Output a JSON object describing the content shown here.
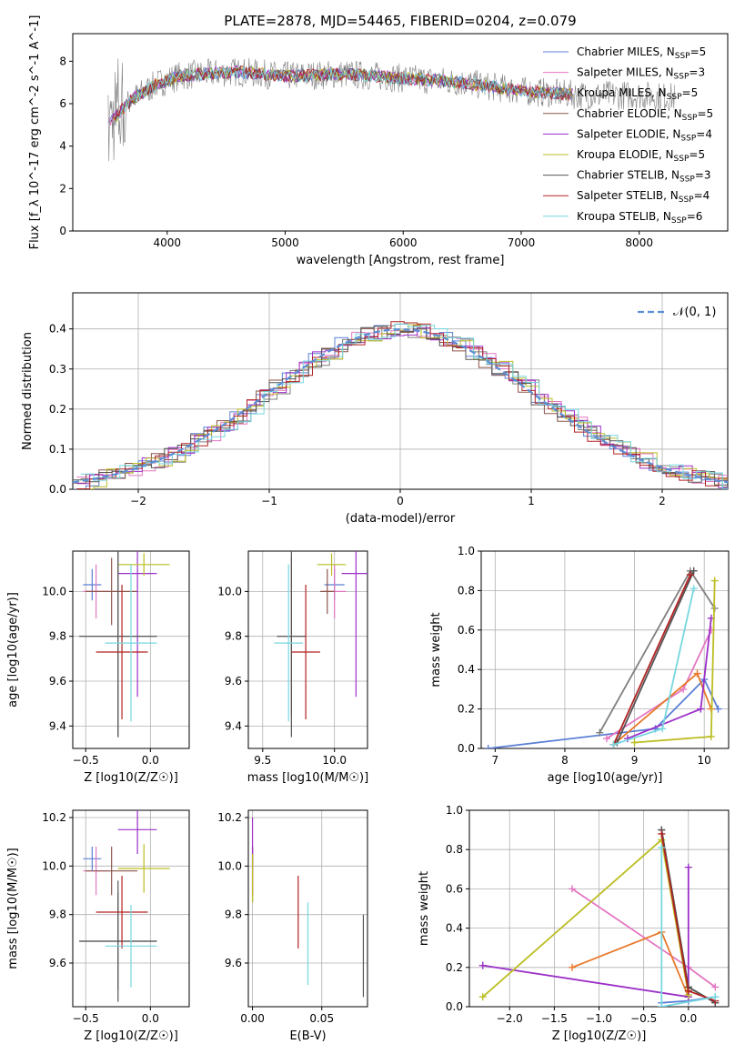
{
  "colors": {
    "series": [
      "#5b7fd6",
      "#e377c2",
      "#7f7f7f",
      "#8c564b",
      "#9b30c8",
      "#bcbd22",
      "#555555",
      "#b22222",
      "#76d7e0"
    ],
    "normal": "#5b8fd6",
    "orange": "#e8782a"
  },
  "legend": [
    "Chabrier MILES, N_SSP=5",
    "Salpeter MILES, N_SSP=3",
    "Kroupa MILES, N_SSP=5",
    "Chabrier ELODIE, N_SSP=5",
    "Salpeter ELODIE, N_SSP=4",
    "Kroupa ELODIE, N_SSP=5",
    "Chabrier STELIB, N_SSP=3",
    "Salpeter STELIB, N_SSP=4",
    "Kroupa STELIB, N_SSP=6"
  ],
  "chart_data": [
    {
      "id": "spectrum",
      "type": "line",
      "title": "PLATE=2878, MJD=54465, FIBERID=0204, z=0.079",
      "xlabel": "wavelength [Angstrom, rest frame]",
      "ylabel": "Flux [f_λ 10^-17 erg cm^-2 s^-1 A^-1]",
      "xlim": [
        3200,
        8750
      ],
      "ylim": [
        0,
        9.3
      ],
      "xticks": [
        "4000",
        "5000",
        "6000",
        "7000",
        "8000"
      ],
      "yticks": [
        "0",
        "2",
        "4",
        "6",
        "8"
      ],
      "continuum": {
        "x": [
          3500,
          3700,
          3900,
          4100,
          4300,
          4600,
          5000,
          5500,
          6000,
          6500,
          7000,
          7500,
          8000,
          8300
        ],
        "y": [
          5.0,
          6.2,
          6.9,
          7.3,
          7.4,
          7.5,
          7.3,
          7.4,
          7.2,
          7.0,
          6.6,
          6.4,
          6.4,
          6.3
        ]
      }
    },
    {
      "id": "residuals",
      "type": "line",
      "xlabel": "(data-model)/error",
      "ylabel": "Normed distribution",
      "xlim": [
        -2.5,
        2.5
      ],
      "ylim": [
        0,
        0.49
      ],
      "xticks": [
        "−2",
        "−1",
        "0",
        "1",
        "2"
      ],
      "yticks": [
        "0.0",
        "0.1",
        "0.2",
        "0.3",
        "0.4"
      ],
      "legend": "N(0,1)",
      "grid": true
    },
    {
      "id": "age-Z",
      "type": "scatter",
      "xlabel": "Z [log10(Z/Z☉)]",
      "ylabel": "age [log10(age/yr)]",
      "xlim": [
        -0.6,
        0.3
      ],
      "ylim": [
        9.3,
        10.18
      ],
      "xticks": [
        "−0.5",
        "0.0"
      ],
      "yticks": [
        "9.4",
        "9.6",
        "9.8",
        "10.0"
      ],
      "points": [
        {
          "x": -0.45,
          "y": 10.03,
          "xe": 0.07,
          "ye": 0.07
        },
        {
          "x": -0.42,
          "y": 10.0,
          "xe": 0.1,
          "ye": 0.12
        },
        {
          "x": -0.25,
          "y": 9.8,
          "xe": 0.3,
          "ye": 0.45
        },
        {
          "x": -0.3,
          "y": 10.0,
          "xe": 0.2,
          "ye": 0.15
        },
        {
          "x": -0.1,
          "y": 10.08,
          "xe": 0.15,
          "ye": 0.55
        },
        {
          "x": -0.05,
          "y": 10.12,
          "xe": 0.2,
          "ye": 0.05
        },
        {
          "x": -0.25,
          "y": 9.8,
          "xe": 0.3,
          "ye": 0.45
        },
        {
          "x": -0.22,
          "y": 9.73,
          "xe": 0.2,
          "ye": 0.3
        },
        {
          "x": -0.15,
          "y": 9.77,
          "xe": 0.2,
          "ye": 0.35
        }
      ]
    },
    {
      "id": "age-mass",
      "type": "scatter",
      "xlabel": "mass [log10(M/M☉)]",
      "ylabel": "",
      "xlim": [
        9.4,
        10.23
      ],
      "ylim": [
        9.3,
        10.18
      ],
      "xticks": [
        "9.5",
        "10.0"
      ],
      "yticks": [
        "9.4",
        "9.6",
        "9.8",
        "10.0"
      ],
      "points": [
        {
          "x": 10.0,
          "y": 10.03,
          "xe": 0.07,
          "ye": 0.07
        },
        {
          "x": 10.0,
          "y": 10.0,
          "xe": 0.08,
          "ye": 0.12
        },
        {
          "x": 9.7,
          "y": 9.8,
          "xe": 0.1,
          "ye": 0.35
        },
        {
          "x": 9.95,
          "y": 10.0,
          "xe": 0.05,
          "ye": 0.1
        },
        {
          "x": 10.15,
          "y": 10.08,
          "xe": 0.1,
          "ye": 0.55
        },
        {
          "x": 9.98,
          "y": 10.12,
          "xe": 0.1,
          "ye": 0.05
        },
        {
          "x": 9.7,
          "y": 9.8,
          "xe": 0.1,
          "ye": 0.45
        },
        {
          "x": 9.8,
          "y": 9.73,
          "xe": 0.1,
          "ye": 0.3
        },
        {
          "x": 9.68,
          "y": 9.77,
          "xe": 0.1,
          "ye": 0.35
        }
      ]
    },
    {
      "id": "weight-age",
      "type": "line",
      "xlabel": "age [log10(age/yr)]",
      "ylabel": "mass weight",
      "xlim": [
        6.8,
        10.35
      ],
      "ylim": [
        0,
        1
      ],
      "xticks": [
        "7",
        "8",
        "9",
        "10"
      ],
      "yticks": [
        "0.0",
        "0.2",
        "0.4",
        "0.6",
        "0.8",
        "1.0"
      ],
      "series": [
        {
          "x": [
            6.9,
            9.3,
            10.0,
            10.2
          ],
          "y": [
            0.0,
            0.1,
            0.35,
            0.2
          ]
        },
        {
          "x": [
            8.6,
            9.7,
            10.1
          ],
          "y": [
            0.05,
            0.3,
            0.6
          ]
        },
        {
          "x": [
            8.5,
            9.8,
            10.15
          ],
          "y": [
            0.08,
            0.9,
            0.71
          ]
        },
        {
          "x": [
            8.7,
            9.9,
            10.1
          ],
          "y": [
            0.02,
            0.38,
            0.2
          ]
        },
        {
          "x": [
            8.9,
            9.95,
            10.1
          ],
          "y": [
            0.05,
            0.2,
            0.66
          ]
        },
        {
          "x": [
            9.0,
            10.1,
            10.15
          ],
          "y": [
            0.03,
            0.06,
            0.85
          ]
        },
        {
          "x": [
            8.75,
            9.85
          ],
          "y": [
            0.03,
            0.9
          ]
        },
        {
          "x": [
            8.7,
            9.8
          ],
          "y": [
            0.02,
            0.88
          ]
        },
        {
          "x": [
            8.7,
            9.4,
            9.85
          ],
          "y": [
            0.02,
            0.1,
            0.81
          ]
        }
      ]
    },
    {
      "id": "mass-Z",
      "type": "scatter",
      "xlabel": "Z [log10(Z/Z☉)]",
      "ylabel": "mass [log10(M/M☉)]",
      "xlim": [
        -0.6,
        0.3
      ],
      "ylim": [
        9.42,
        10.23
      ],
      "xticks": [
        "−0.5",
        "0.0"
      ],
      "yticks": [
        "9.6",
        "9.8",
        "10.0",
        "10.2"
      ],
      "points": [
        {
          "x": -0.45,
          "y": 10.03,
          "xe": 0.07,
          "ye": 0.05
        },
        {
          "x": -0.42,
          "y": 9.98,
          "xe": 0.1,
          "ye": 0.1
        },
        {
          "x": -0.25,
          "y": 9.69,
          "xe": 0.3,
          "ye": 0.2
        },
        {
          "x": -0.3,
          "y": 9.98,
          "xe": 0.2,
          "ye": 0.1
        },
        {
          "x": -0.1,
          "y": 10.15,
          "xe": 0.15,
          "ye": 0.1
        },
        {
          "x": -0.05,
          "y": 9.99,
          "xe": 0.2,
          "ye": 0.1
        },
        {
          "x": -0.25,
          "y": 9.69,
          "xe": 0.3,
          "ye": 0.25
        },
        {
          "x": -0.22,
          "y": 9.81,
          "xe": 0.2,
          "ye": 0.15
        },
        {
          "x": -0.15,
          "y": 9.67,
          "xe": 0.2,
          "ye": 0.17
        }
      ]
    },
    {
      "id": "mass-ebv",
      "type": "scatter",
      "xlabel": "E(B-V)",
      "ylabel": "",
      "xlim": [
        -0.003,
        0.083
      ],
      "ylim": [
        9.42,
        10.23
      ],
      "xticks": [
        "0.00",
        "0.05"
      ],
      "yticks": [
        "9.6",
        "9.8",
        "10.0",
        "10.2"
      ],
      "points": [
        {
          "x": 0.0,
          "y": 10.03,
          "xe": 0,
          "ye": 0.05
        },
        {
          "x": 0.0,
          "y": 9.98,
          "xe": 0,
          "ye": 0.1
        },
        {
          "x": 0.0,
          "y": 9.95,
          "xe": 0,
          "ye": 0.1
        },
        {
          "x": 0.0,
          "y": 9.98,
          "xe": 0,
          "ye": 0.1
        },
        {
          "x": 0.0,
          "y": 10.1,
          "xe": 0,
          "ye": 0.1
        },
        {
          "x": 0.0,
          "y": 9.95,
          "xe": 0,
          "ye": 0.1
        },
        {
          "x": 0.08,
          "y": 9.63,
          "xe": 0,
          "ye": 0.17
        },
        {
          "x": 0.033,
          "y": 9.81,
          "xe": 0,
          "ye": 0.15
        },
        {
          "x": 0.04,
          "y": 9.68,
          "xe": 0,
          "ye": 0.17
        }
      ]
    },
    {
      "id": "weight-Z",
      "type": "line",
      "xlabel": "Z [log10(Z/Z☉)]",
      "ylabel": "mass weight",
      "xlim": [
        -2.45,
        0.45
      ],
      "ylim": [
        0,
        1
      ],
      "xticks": [
        "−2.0",
        "−1.5",
        "−1.0",
        "−0.5",
        "0.0"
      ],
      "yticks": [
        "0.0",
        "0.2",
        "0.4",
        "0.6",
        "0.8",
        "1.0"
      ],
      "series": [
        {
          "x": [
            -0.3,
            0.0,
            0.3
          ],
          "y": [
            0.02,
            0.03,
            0.05
          ]
        },
        {
          "x": [
            -1.3,
            0.0,
            0.3
          ],
          "y": [
            0.6,
            0.2,
            0.1
          ]
        },
        {
          "x": [
            -0.3,
            0.0,
            0.3
          ],
          "y": [
            0.9,
            0.1,
            0.02
          ]
        },
        {
          "x": [
            -1.3,
            -0.3,
            0.0
          ],
          "y": [
            0.2,
            0.38,
            0.05
          ]
        },
        {
          "x": [
            -2.3,
            0.0,
            0.0
          ],
          "y": [
            0.21,
            0.05,
            0.71
          ]
        },
        {
          "x": [
            -2.3,
            -0.3,
            0.0
          ],
          "y": [
            0.05,
            0.85,
            0.06
          ]
        },
        {
          "x": [
            -0.3,
            0.0,
            0.3
          ],
          "y": [
            0.9,
            0.1,
            0.02
          ]
        },
        {
          "x": [
            -0.3,
            0.0,
            0.3
          ],
          "y": [
            0.88,
            0.08,
            0.03
          ]
        },
        {
          "x": [
            -0.3,
            -0.3,
            0.3
          ],
          "y": [
            0.81,
            0.0,
            0.05
          ]
        }
      ]
    }
  ]
}
